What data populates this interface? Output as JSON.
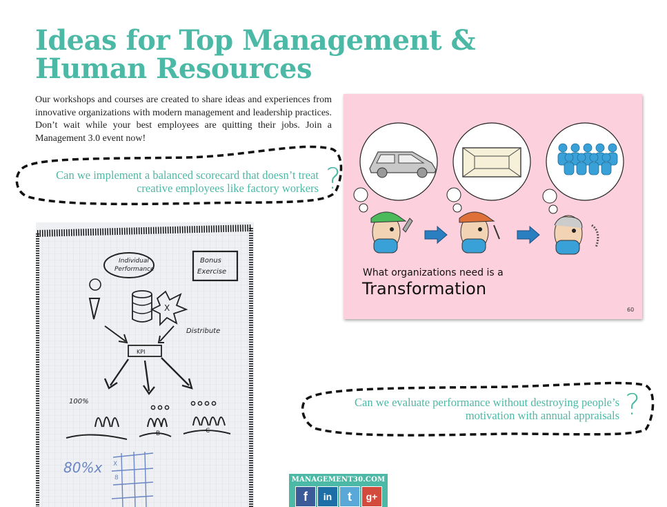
{
  "heading": {
    "line1": "Ideas for Top Management &",
    "line2": "Human Resources"
  },
  "intro": "Our workshops and courses are created to share ideas and experiences from innovative organizations with modern management and leadership practices. Don’t wait while your best employees are quitting their jobs. Join a Management 3.0 event now!",
  "question1": {
    "text": "Can we implement a balanced scorecard that doesn’t treat creative employees like factory workers",
    "mark": "?"
  },
  "question2": {
    "text": "Can we evaluate performance without destroying people’s motivation with annual appraisals",
    "mark": "?"
  },
  "slide": {
    "caption": "What organizations need is a",
    "headline": "Transformation",
    "page_number": "60"
  },
  "flipchart": {
    "labels": [
      "Individual",
      "Performance",
      "Bonus",
      "Exercise",
      "Distribute",
      "KPI",
      "100%",
      "80%",
      "A",
      "B",
      "C",
      "X",
      "8"
    ]
  },
  "social": {
    "site": "MANAGEMENT30.COM",
    "icons": [
      "facebook-icon",
      "linkedin-icon",
      "twitter-icon",
      "google-plus-icon"
    ],
    "glyphs": {
      "facebook": "f",
      "linkedin": "in",
      "twitter": "t",
      "googleplus": "g+"
    }
  },
  "colors": {
    "accent": "#4cb8a6",
    "slide_bg": "#fcd0dd",
    "bubble_circle": "#ffffff",
    "person_blue": "#3aa0d8"
  }
}
